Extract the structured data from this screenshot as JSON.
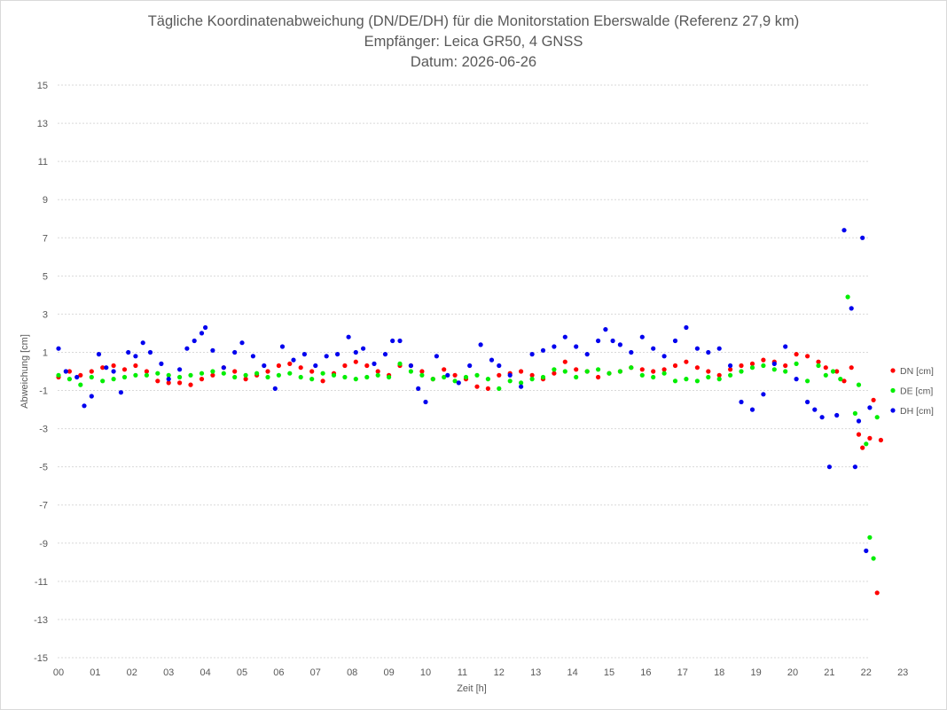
{
  "chart_data": {
    "type": "scatter",
    "title": [
      "Tägliche Koordinatenabweichung (DN/DE/DH) für die Monitorstation Eberswalde (Referenz 27,9 km)",
      "Empfänger: Leica GR50, 4 GNSS",
      "Datum: 2026-06-26"
    ],
    "xlabel": "Zeit [h]",
    "ylabel": "Abweichung [cm]",
    "xlim": [
      0,
      23.2
    ],
    "ylim": [
      -15,
      15
    ],
    "x_tick_labels": [
      "00",
      "01",
      "02",
      "03",
      "04",
      "05",
      "06",
      "07",
      "08",
      "09",
      "10",
      "11",
      "12",
      "13",
      "14",
      "15",
      "16",
      "17",
      "18",
      "19",
      "20",
      "21",
      "22",
      "23"
    ],
    "y_ticks": [
      15,
      13,
      11,
      9,
      7,
      5,
      3,
      1,
      -1,
      -3,
      -5,
      -7,
      -9,
      -11,
      -13,
      -15
    ],
    "grid": "horizontal dashed",
    "legend_position": "right",
    "series": [
      {
        "name": "DN [cm]",
        "color": "#ff0000",
        "points": [
          [
            0.0,
            -0.3
          ],
          [
            0.3,
            0.0
          ],
          [
            0.6,
            -0.2
          ],
          [
            0.9,
            0.0
          ],
          [
            1.2,
            0.2
          ],
          [
            1.5,
            0.3
          ],
          [
            1.8,
            0.1
          ],
          [
            2.1,
            0.3
          ],
          [
            2.4,
            0.0
          ],
          [
            2.7,
            -0.5
          ],
          [
            3.0,
            -0.6
          ],
          [
            3.3,
            -0.6
          ],
          [
            3.6,
            -0.7
          ],
          [
            3.9,
            -0.4
          ],
          [
            4.2,
            -0.2
          ],
          [
            4.5,
            0.2
          ],
          [
            4.8,
            0.0
          ],
          [
            5.1,
            -0.4
          ],
          [
            5.4,
            -0.2
          ],
          [
            5.7,
            0.0
          ],
          [
            6.0,
            0.3
          ],
          [
            6.3,
            0.4
          ],
          [
            6.6,
            0.2
          ],
          [
            6.9,
            0.0
          ],
          [
            7.2,
            -0.5
          ],
          [
            7.5,
            -0.1
          ],
          [
            7.8,
            0.3
          ],
          [
            8.1,
            0.5
          ],
          [
            8.4,
            0.3
          ],
          [
            8.7,
            0.0
          ],
          [
            9.0,
            -0.2
          ],
          [
            9.3,
            0.3
          ],
          [
            9.6,
            0.3
          ],
          [
            9.9,
            0.0
          ],
          [
            10.2,
            -0.4
          ],
          [
            10.5,
            0.1
          ],
          [
            10.8,
            -0.2
          ],
          [
            11.1,
            -0.4
          ],
          [
            11.4,
            -0.8
          ],
          [
            11.7,
            -0.9
          ],
          [
            12.0,
            -0.2
          ],
          [
            12.3,
            -0.1
          ],
          [
            12.6,
            0.0
          ],
          [
            12.9,
            -0.2
          ],
          [
            13.2,
            -0.4
          ],
          [
            13.5,
            -0.1
          ],
          [
            13.8,
            0.5
          ],
          [
            14.1,
            0.1
          ],
          [
            14.4,
            0.0
          ],
          [
            14.7,
            -0.3
          ],
          [
            15.0,
            -0.1
          ],
          [
            15.3,
            0.0
          ],
          [
            15.6,
            0.2
          ],
          [
            15.9,
            0.1
          ],
          [
            16.2,
            0.0
          ],
          [
            16.5,
            0.1
          ],
          [
            16.8,
            0.3
          ],
          [
            17.1,
            0.5
          ],
          [
            17.4,
            0.2
          ],
          [
            17.7,
            0.0
          ],
          [
            18.0,
            -0.2
          ],
          [
            18.3,
            0.1
          ],
          [
            18.6,
            0.3
          ],
          [
            18.9,
            0.4
          ],
          [
            19.2,
            0.6
          ],
          [
            19.5,
            0.5
          ],
          [
            19.8,
            0.3
          ],
          [
            20.1,
            0.9
          ],
          [
            20.4,
            0.8
          ],
          [
            20.7,
            0.5
          ],
          [
            20.9,
            0.2
          ],
          [
            21.2,
            0.0
          ],
          [
            21.4,
            -0.5
          ],
          [
            21.6,
            0.2
          ],
          [
            21.8,
            -3.3
          ],
          [
            21.9,
            -4.0
          ],
          [
            22.1,
            -3.5
          ],
          [
            22.2,
            -1.5
          ],
          [
            22.3,
            -11.6
          ],
          [
            22.4,
            -3.6
          ]
        ]
      },
      {
        "name": "DE [cm]",
        "color": "#00ee00",
        "points": [
          [
            0.0,
            -0.2
          ],
          [
            0.3,
            -0.4
          ],
          [
            0.6,
            -0.7
          ],
          [
            0.9,
            -0.3
          ],
          [
            1.2,
            -0.5
          ],
          [
            1.5,
            -0.4
          ],
          [
            1.8,
            -0.3
          ],
          [
            2.1,
            -0.2
          ],
          [
            2.4,
            -0.2
          ],
          [
            2.7,
            -0.1
          ],
          [
            3.0,
            -0.2
          ],
          [
            3.3,
            -0.3
          ],
          [
            3.6,
            -0.2
          ],
          [
            3.9,
            -0.1
          ],
          [
            4.2,
            0.0
          ],
          [
            4.5,
            -0.1
          ],
          [
            4.8,
            -0.3
          ],
          [
            5.1,
            -0.2
          ],
          [
            5.4,
            -0.1
          ],
          [
            5.7,
            -0.3
          ],
          [
            6.0,
            -0.2
          ],
          [
            6.3,
            -0.1
          ],
          [
            6.6,
            -0.3
          ],
          [
            6.9,
            -0.4
          ],
          [
            7.2,
            -0.1
          ],
          [
            7.5,
            -0.2
          ],
          [
            7.8,
            -0.3
          ],
          [
            8.1,
            -0.4
          ],
          [
            8.4,
            -0.3
          ],
          [
            8.7,
            -0.2
          ],
          [
            9.0,
            -0.3
          ],
          [
            9.3,
            0.4
          ],
          [
            9.6,
            0.0
          ],
          [
            9.9,
            -0.2
          ],
          [
            10.2,
            -0.4
          ],
          [
            10.5,
            -0.3
          ],
          [
            10.8,
            -0.5
          ],
          [
            11.1,
            -0.3
          ],
          [
            11.4,
            -0.2
          ],
          [
            11.7,
            -0.4
          ],
          [
            12.0,
            -0.9
          ],
          [
            12.3,
            -0.5
          ],
          [
            12.6,
            -0.6
          ],
          [
            12.9,
            -0.4
          ],
          [
            13.2,
            -0.3
          ],
          [
            13.5,
            0.1
          ],
          [
            13.8,
            0.0
          ],
          [
            14.1,
            -0.3
          ],
          [
            14.4,
            0.0
          ],
          [
            14.7,
            0.1
          ],
          [
            15.0,
            -0.1
          ],
          [
            15.3,
            0.0
          ],
          [
            15.6,
            0.2
          ],
          [
            15.9,
            -0.2
          ],
          [
            16.2,
            -0.3
          ],
          [
            16.5,
            -0.1
          ],
          [
            16.8,
            -0.5
          ],
          [
            17.1,
            -0.4
          ],
          [
            17.4,
            -0.5
          ],
          [
            17.7,
            -0.3
          ],
          [
            18.0,
            -0.4
          ],
          [
            18.3,
            -0.2
          ],
          [
            18.6,
            0.0
          ],
          [
            18.9,
            0.2
          ],
          [
            19.2,
            0.3
          ],
          [
            19.5,
            0.1
          ],
          [
            19.8,
            0.0
          ],
          [
            20.1,
            0.4
          ],
          [
            20.4,
            -0.5
          ],
          [
            20.7,
            0.3
          ],
          [
            20.9,
            -0.2
          ],
          [
            21.1,
            0.0
          ],
          [
            21.3,
            -0.4
          ],
          [
            21.5,
            3.9
          ],
          [
            21.7,
            -2.2
          ],
          [
            21.8,
            -0.7
          ],
          [
            22.0,
            -3.8
          ],
          [
            22.1,
            -8.7
          ],
          [
            22.2,
            -9.8
          ],
          [
            22.3,
            -2.4
          ]
        ]
      },
      {
        "name": "DH [cm]",
        "color": "#0000ee",
        "points": [
          [
            0.0,
            1.2
          ],
          [
            0.2,
            0.0
          ],
          [
            0.5,
            -0.3
          ],
          [
            0.7,
            -1.8
          ],
          [
            0.9,
            -1.3
          ],
          [
            1.1,
            0.9
          ],
          [
            1.3,
            0.2
          ],
          [
            1.5,
            0.0
          ],
          [
            1.7,
            -1.1
          ],
          [
            1.9,
            1.0
          ],
          [
            2.1,
            0.8
          ],
          [
            2.3,
            1.5
          ],
          [
            2.5,
            1.0
          ],
          [
            2.8,
            0.4
          ],
          [
            3.0,
            -0.4
          ],
          [
            3.3,
            0.1
          ],
          [
            3.5,
            1.2
          ],
          [
            3.7,
            1.6
          ],
          [
            3.9,
            2.0
          ],
          [
            4.0,
            2.3
          ],
          [
            4.2,
            1.1
          ],
          [
            4.5,
            0.2
          ],
          [
            4.8,
            1.0
          ],
          [
            5.0,
            1.5
          ],
          [
            5.3,
            0.8
          ],
          [
            5.6,
            0.3
          ],
          [
            5.9,
            -0.9
          ],
          [
            6.1,
            1.3
          ],
          [
            6.4,
            0.6
          ],
          [
            6.7,
            0.9
          ],
          [
            7.0,
            0.3
          ],
          [
            7.3,
            0.8
          ],
          [
            7.6,
            0.9
          ],
          [
            7.9,
            1.8
          ],
          [
            8.1,
            1.0
          ],
          [
            8.3,
            1.2
          ],
          [
            8.6,
            0.4
          ],
          [
            8.9,
            0.9
          ],
          [
            9.1,
            1.6
          ],
          [
            9.3,
            1.6
          ],
          [
            9.6,
            0.3
          ],
          [
            9.8,
            -0.9
          ],
          [
            10.0,
            -1.6
          ],
          [
            10.3,
            0.8
          ],
          [
            10.6,
            -0.2
          ],
          [
            10.9,
            -0.6
          ],
          [
            11.2,
            0.3
          ],
          [
            11.5,
            1.4
          ],
          [
            11.8,
            0.6
          ],
          [
            12.0,
            0.3
          ],
          [
            12.3,
            -0.2
          ],
          [
            12.6,
            -0.8
          ],
          [
            12.9,
            0.9
          ],
          [
            13.2,
            1.1
          ],
          [
            13.5,
            1.3
          ],
          [
            13.8,
            1.8
          ],
          [
            14.1,
            1.3
          ],
          [
            14.4,
            0.9
          ],
          [
            14.7,
            1.6
          ],
          [
            14.9,
            2.2
          ],
          [
            15.1,
            1.6
          ],
          [
            15.3,
            1.4
          ],
          [
            15.6,
            1.0
          ],
          [
            15.9,
            1.8
          ],
          [
            16.2,
            1.2
          ],
          [
            16.5,
            0.8
          ],
          [
            16.8,
            1.6
          ],
          [
            17.1,
            2.3
          ],
          [
            17.4,
            1.2
          ],
          [
            17.7,
            1.0
          ],
          [
            18.0,
            1.2
          ],
          [
            18.3,
            0.3
          ],
          [
            18.6,
            -1.6
          ],
          [
            18.9,
            -2.0
          ],
          [
            19.2,
            -1.2
          ],
          [
            19.5,
            0.4
          ],
          [
            19.8,
            1.3
          ],
          [
            20.1,
            -0.4
          ],
          [
            20.4,
            -1.6
          ],
          [
            20.6,
            -2.0
          ],
          [
            20.8,
            -2.4
          ],
          [
            21.0,
            -5.0
          ],
          [
            21.2,
            -2.3
          ],
          [
            21.4,
            7.4
          ],
          [
            21.6,
            3.3
          ],
          [
            21.7,
            -5.0
          ],
          [
            21.8,
            -2.6
          ],
          [
            21.9,
            7.0
          ],
          [
            22.0,
            -9.4
          ],
          [
            22.1,
            -1.9
          ]
        ]
      }
    ]
  }
}
